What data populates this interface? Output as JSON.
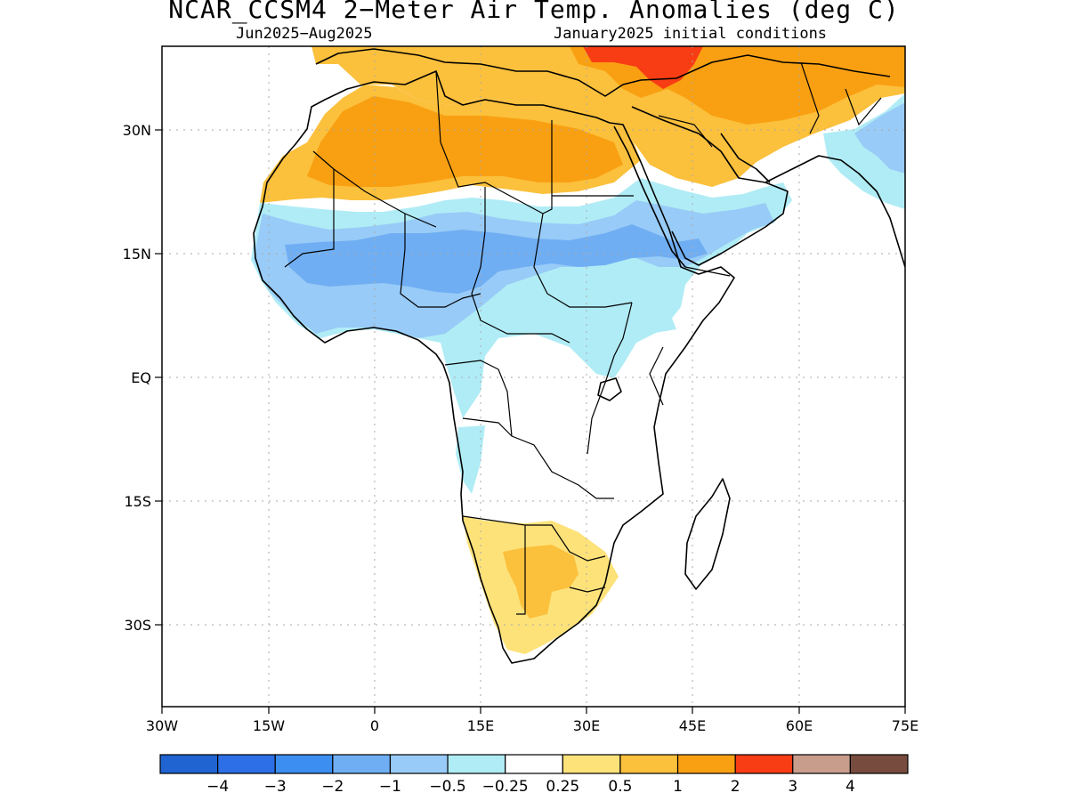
{
  "figure": {
    "title": "NCAR_CCSM4 2−Meter Air Temp. Anomalies (deg C)",
    "period": "Jun2025−Aug2025",
    "initial_conditions": "January2025 initial conditions"
  },
  "axes": {
    "lon_range": [
      -30,
      75
    ],
    "lat_range": [
      -40,
      40
    ],
    "lon_ticks": [
      {
        "value": -30,
        "label": "30W"
      },
      {
        "value": -15,
        "label": "15W"
      },
      {
        "value": 0,
        "label": "0"
      },
      {
        "value": 15,
        "label": "15E"
      },
      {
        "value": 30,
        "label": "30E"
      },
      {
        "value": 45,
        "label": "45E"
      },
      {
        "value": 60,
        "label": "60E"
      },
      {
        "value": 75,
        "label": "75E"
      }
    ],
    "lat_ticks": [
      {
        "value": 30,
        "label": "30N"
      },
      {
        "value": 15,
        "label": "15N"
      },
      {
        "value": 0,
        "label": "EQ"
      },
      {
        "value": -15,
        "label": "15S"
      },
      {
        "value": -30,
        "label": "30S"
      }
    ],
    "grid": "dotted"
  },
  "colorbar": {
    "colors": [
      "#1f64d0",
      "#2c6fe6",
      "#3c8ef0",
      "#70aef3",
      "#98cbf7",
      "#b0ecf5",
      "#ffffff",
      "#fde27a",
      "#fbc03c",
      "#f9a012",
      "#f83c14",
      "#c89d8c",
      "#774c3e"
    ],
    "labels": [
      "−4",
      "−3",
      "−2",
      "−1",
      "−0.5",
      "−0.25",
      "0.25",
      "0.5",
      "1",
      "2",
      "3",
      "4"
    ]
  }
}
